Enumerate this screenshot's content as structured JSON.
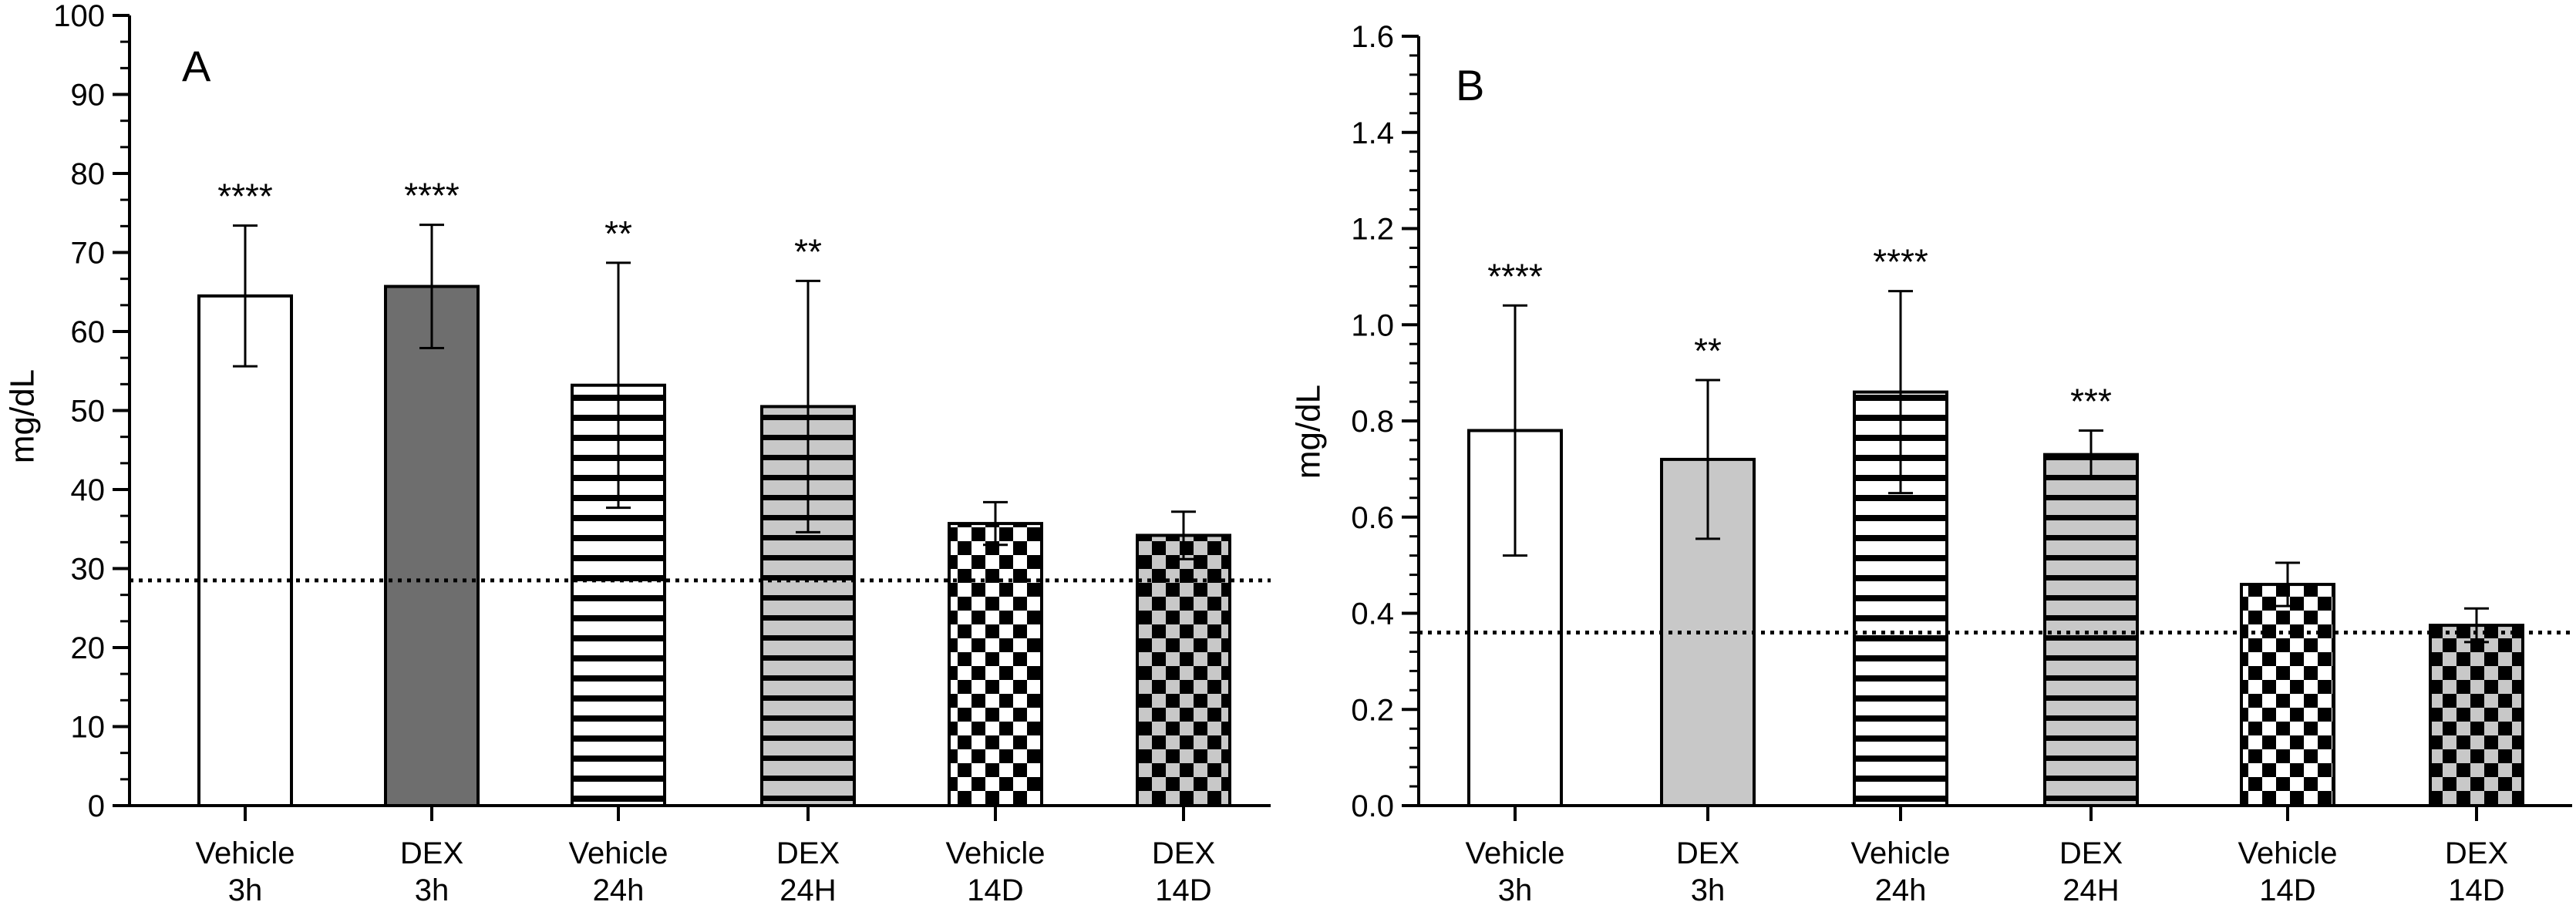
{
  "chart_data": [
    {
      "type": "bar",
      "panel_label": "A",
      "ylabel": "mg/dL",
      "xlabel": "",
      "ylim": [
        0,
        100
      ],
      "yticks": [
        "0",
        "10",
        "20",
        "30",
        "40",
        "50",
        "60",
        "70",
        "80",
        "90",
        "100"
      ],
      "categories": [
        {
          "line1": "Vehicle",
          "line2": "3h"
        },
        {
          "line1": "DEX",
          "line2": "3h"
        },
        {
          "line1": "Vehicle",
          "line2": "24h"
        },
        {
          "line1": "DEX",
          "line2": "24H"
        },
        {
          "line1": "Vehicle",
          "line2": "14D"
        },
        {
          "line1": "DEX",
          "line2": "14D"
        }
      ],
      "values": [
        64.5,
        65.7,
        53.2,
        50.5,
        35.7,
        34.2
      ],
      "errors": [
        8.9,
        7.8,
        15.5,
        15.9,
        2.7,
        3.0
      ],
      "patterns": [
        "white",
        "darkgray",
        "hstripe-white",
        "hstripe-gray",
        "checker-white",
        "checker-gray"
      ],
      "significance": [
        "****",
        "****",
        "**",
        "**",
        "",
        ""
      ],
      "reference_line": 28.5
    },
    {
      "type": "bar",
      "panel_label": "B",
      "ylabel": "mg/dL",
      "xlabel": "",
      "ylim": [
        0,
        1.6
      ],
      "yticks": [
        "0.0",
        "0.2",
        "0.4",
        "0.6",
        "0.8",
        "1.0",
        "1.2",
        "1.4",
        "1.6"
      ],
      "categories": [
        {
          "line1": "Vehicle",
          "line2": "3h"
        },
        {
          "line1": "DEX",
          "line2": "3h"
        },
        {
          "line1": "Vehicle",
          "line2": "24h"
        },
        {
          "line1": "DEX",
          "line2": "24H"
        },
        {
          "line1": "Vehicle",
          "line2": "14D"
        },
        {
          "line1": "DEX",
          "line2": "14D"
        }
      ],
      "values": [
        0.78,
        0.72,
        0.86,
        0.73,
        0.46,
        0.375
      ],
      "errors": [
        0.26,
        0.165,
        0.21,
        0.05,
        0.045,
        0.035
      ],
      "patterns": [
        "white",
        "lightgray",
        "hstripe-white",
        "hstripe-gray",
        "checker-white",
        "checker-gray"
      ],
      "significance": [
        "****",
        "**",
        "****",
        "***",
        "",
        ""
      ],
      "reference_line": 0.36
    }
  ],
  "colors": {
    "dark_gray": "#6e6e6e",
    "light_gray": "#c8c8c8",
    "black": "#000000",
    "white": "#ffffff"
  }
}
